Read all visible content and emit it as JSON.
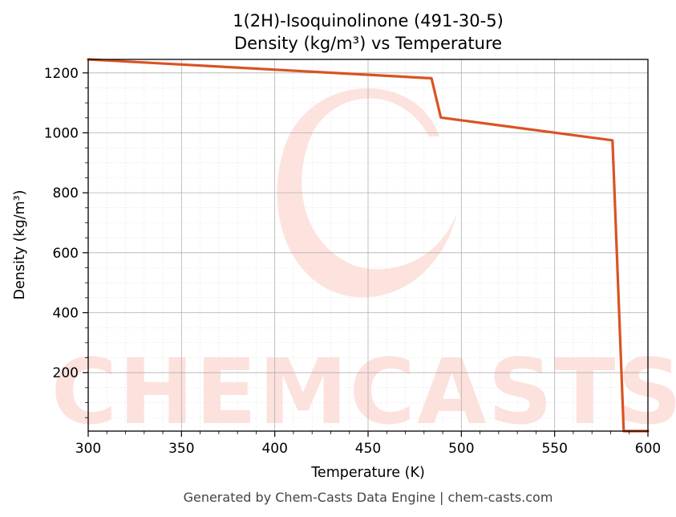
{
  "chart_data": {
    "type": "line",
    "title": "1(2H)-Isoquinolinone (491-30-5)",
    "subtitle": "Density (kg/m³) vs Temperature",
    "xlabel": "Temperature (K)",
    "ylabel": "Density (kg/m³)",
    "xlim": [
      300,
      600
    ],
    "ylim": [
      5,
      1245
    ],
    "x_ticks": [
      300,
      350,
      400,
      450,
      500,
      550,
      600
    ],
    "y_ticks": [
      200,
      400,
      600,
      800,
      1000,
      1200
    ],
    "grid": true,
    "line_color": "#d95323",
    "series": [
      {
        "x": [
          300,
          484,
          489,
          581,
          587,
          600
        ],
        "y": [
          1245,
          1182,
          1051,
          975,
          5,
          5
        ]
      }
    ]
  },
  "watermark": {
    "text": "CHEMCASTS",
    "color": "#fde0dc"
  },
  "footer": "Generated by Chem-Casts Data Engine | chem-casts.com"
}
